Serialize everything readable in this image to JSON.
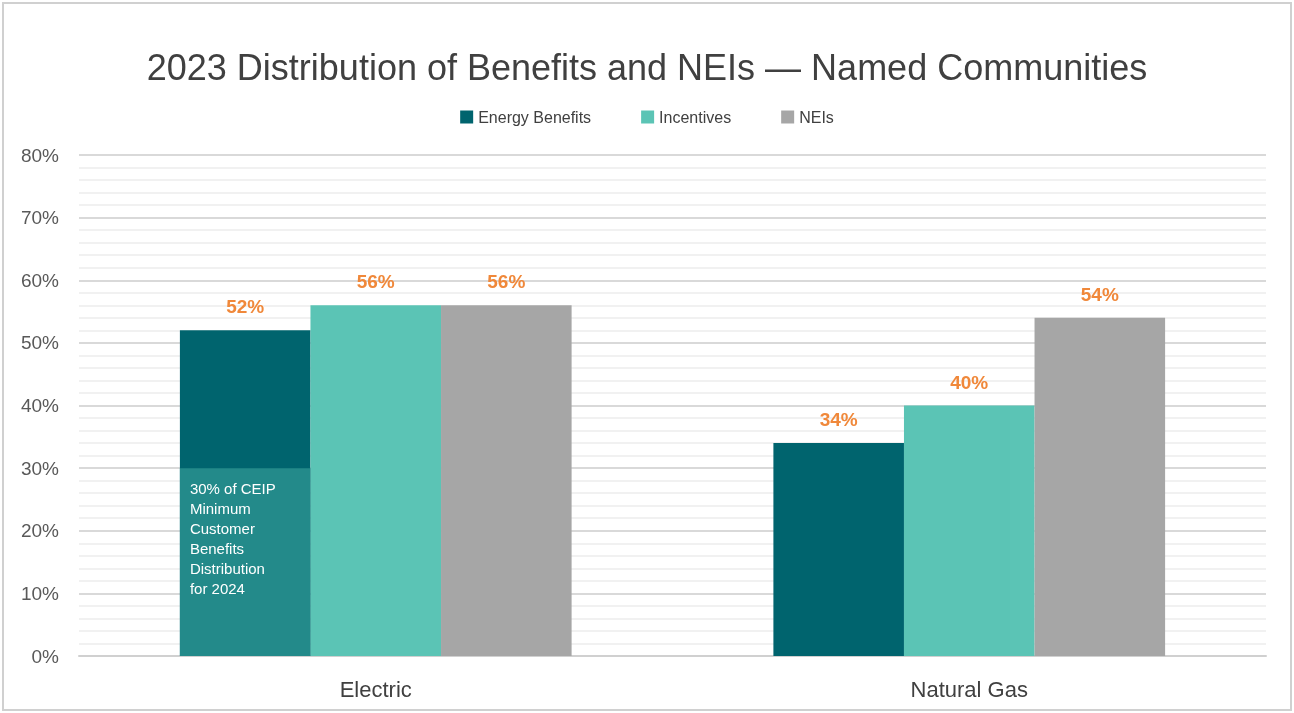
{
  "chart_data": {
    "type": "bar",
    "title": "2023 Distribution of Benefits and NEIs — Named Communities",
    "categories": [
      "Electric",
      "Natural Gas"
    ],
    "series": [
      {
        "name": "Energy Benefits",
        "color": "#00646e",
        "values": [
          52,
          34
        ],
        "value_labels": [
          "52%",
          "34%"
        ]
      },
      {
        "name": "Incentives",
        "color": "#5bc4b5",
        "values": [
          56,
          40
        ],
        "value_labels": [
          "56%",
          "40%"
        ]
      },
      {
        "name": "NEIs",
        "color": "#a6a6a6",
        "values": [
          56,
          54
        ],
        "value_labels": [
          "56%",
          "54%"
        ]
      }
    ],
    "ylim": [
      0,
      80
    ],
    "yticks": [
      {
        "value": 0,
        "label": "0%"
      },
      {
        "value": 10,
        "label": "10%"
      },
      {
        "value": 20,
        "label": "20%"
      },
      {
        "value": 30,
        "label": "30%"
      },
      {
        "value": 40,
        "label": "40%"
      },
      {
        "value": 50,
        "label": "50%"
      },
      {
        "value": 60,
        "label": "60%"
      },
      {
        "value": 70,
        "label": "70%"
      },
      {
        "value": 80,
        "label": "80%"
      }
    ],
    "bands": [
      {
        "axis": "y",
        "from": 0,
        "to": 30,
        "label": "30% of CEIP Minimum Customer Benefits Distribution for 2024",
        "color": "#238a8a"
      }
    ],
    "grid": true,
    "legend": "top"
  }
}
